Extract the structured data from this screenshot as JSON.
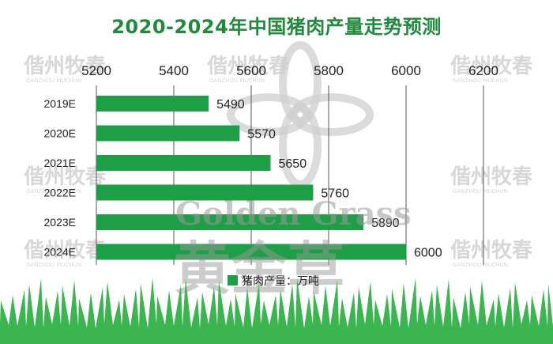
{
  "chart_data": {
    "type": "bar",
    "orientation": "horizontal",
    "title": "2020-2024年中国猪肉产量走势预测",
    "categories": [
      "2019E",
      "2020E",
      "2021E",
      "2022E",
      "2023E",
      "2024E"
    ],
    "series": [
      {
        "name": "猪肉产量：万吨",
        "values": [
          5490,
          5570,
          5650,
          5760,
          5890,
          6000
        ]
      }
    ],
    "xlim": [
      5200,
      6200
    ],
    "xticks": [
      5200,
      5400,
      5600,
      5800,
      6000,
      6200
    ],
    "x_axis_position": "top",
    "grid": true,
    "legend": "bottom-center",
    "bar_color": "#1e9e46",
    "grid_color": "#555555"
  },
  "watermarks": {
    "cn": "偕州牧春",
    "en": "GANZHOU MUCHUN",
    "brand_en": "Golden Grass",
    "brand_cn": "黄金草"
  },
  "colors": {
    "title": "#1f8a3b",
    "grass": "#3cb450",
    "watermark": "#d7d7d7"
  }
}
